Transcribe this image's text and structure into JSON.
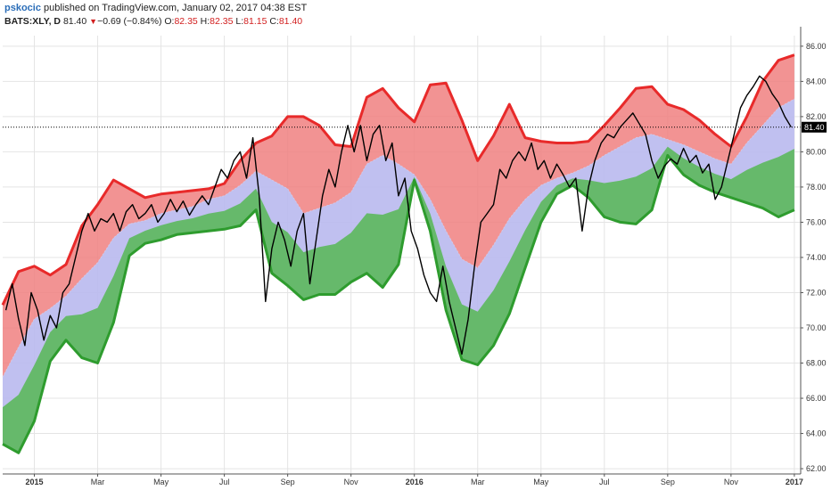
{
  "header": {
    "author": "pskocic",
    "published": "published on TradingView.com, January 02, 2017 04:38 EST",
    "symbol": "BATS:XLY, D",
    "last": "81.40",
    "change_triangle": "▼",
    "change": "−0.69 (−0.84%)",
    "open_label": "O:",
    "open": "82.35",
    "high_label": "H:",
    "high": "82.35",
    "low_label": "L:",
    "low": "81.15",
    "close_label": "C:",
    "close": "81.40"
  },
  "colors": {
    "price": "#000000",
    "upper_band": "#e82a2a",
    "upper_fill": "#f08080",
    "middle_fill": "#b9b9ee",
    "lower_band": "#2e9c2e",
    "lower_fill": "#5cb85c",
    "grid": "#e4e4e4",
    "background": "#ffffff"
  },
  "chart_data": {
    "type": "line",
    "y_axis_position": "right",
    "ylim": [
      61.7,
      86.6
    ],
    "y_ticks": [
      "62.00",
      "64.00",
      "66.00",
      "68.00",
      "70.00",
      "72.00",
      "74.00",
      "76.00",
      "78.00",
      "80.00",
      "82.00",
      "84.00",
      "86.00"
    ],
    "x_ticks": [
      {
        "t": 1.0,
        "label": "2015",
        "bold": true
      },
      {
        "t": 3.0,
        "label": "Mar",
        "bold": false
      },
      {
        "t": 5.0,
        "label": "May",
        "bold": false
      },
      {
        "t": 7.0,
        "label": "Jul",
        "bold": false
      },
      {
        "t": 9.0,
        "label": "Sep",
        "bold": false
      },
      {
        "t": 11.0,
        "label": "Nov",
        "bold": false
      },
      {
        "t": 13.0,
        "label": "2016",
        "bold": true
      },
      {
        "t": 15.0,
        "label": "Mar",
        "bold": false
      },
      {
        "t": 17.0,
        "label": "May",
        "bold": false
      },
      {
        "t": 19.0,
        "label": "Jul",
        "bold": false
      },
      {
        "t": 21.0,
        "label": "Sep",
        "bold": false
      },
      {
        "t": 23.0,
        "label": "Nov",
        "bold": false
      },
      {
        "t": 25.0,
        "label": "2017",
        "bold": true
      }
    ],
    "last_price_label": "81.40",
    "last_price": 81.4,
    "series": [
      {
        "role": "price",
        "points": [
          [
            0.1,
            71.0
          ],
          [
            0.3,
            72.5
          ],
          [
            0.5,
            70.5
          ],
          [
            0.7,
            69.0
          ],
          [
            0.9,
            72.0
          ],
          [
            1.1,
            71.0
          ],
          [
            1.3,
            69.3
          ],
          [
            1.5,
            70.7
          ],
          [
            1.7,
            70.0
          ],
          [
            1.9,
            72.0
          ],
          [
            2.1,
            72.5
          ],
          [
            2.3,
            74.0
          ],
          [
            2.5,
            75.5
          ],
          [
            2.7,
            76.5
          ],
          [
            2.9,
            75.5
          ],
          [
            3.1,
            76.2
          ],
          [
            3.3,
            76.0
          ],
          [
            3.5,
            76.5
          ],
          [
            3.7,
            75.5
          ],
          [
            3.9,
            76.6
          ],
          [
            4.1,
            77.0
          ],
          [
            4.3,
            76.2
          ],
          [
            4.5,
            76.5
          ],
          [
            4.7,
            77.0
          ],
          [
            4.9,
            76.0
          ],
          [
            5.1,
            76.5
          ],
          [
            5.3,
            77.3
          ],
          [
            5.5,
            76.6
          ],
          [
            5.7,
            77.2
          ],
          [
            5.9,
            76.4
          ],
          [
            6.1,
            77.0
          ],
          [
            6.3,
            77.5
          ],
          [
            6.5,
            77.0
          ],
          [
            6.7,
            78.0
          ],
          [
            6.9,
            79.0
          ],
          [
            7.1,
            78.5
          ],
          [
            7.3,
            79.5
          ],
          [
            7.5,
            80.0
          ],
          [
            7.7,
            78.5
          ],
          [
            7.9,
            80.8
          ],
          [
            8.1,
            77.5
          ],
          [
            8.3,
            71.5
          ],
          [
            8.5,
            74.5
          ],
          [
            8.7,
            76.0
          ],
          [
            8.9,
            75.0
          ],
          [
            9.1,
            73.5
          ],
          [
            9.3,
            75.5
          ],
          [
            9.5,
            76.5
          ],
          [
            9.7,
            72.5
          ],
          [
            9.9,
            75.0
          ],
          [
            10.1,
            77.5
          ],
          [
            10.3,
            79.0
          ],
          [
            10.5,
            78.0
          ],
          [
            10.7,
            80.0
          ],
          [
            10.9,
            81.5
          ],
          [
            11.1,
            80.0
          ],
          [
            11.3,
            81.5
          ],
          [
            11.5,
            79.5
          ],
          [
            11.7,
            81.0
          ],
          [
            11.9,
            81.5
          ],
          [
            12.1,
            79.5
          ],
          [
            12.3,
            80.5
          ],
          [
            12.5,
            77.5
          ],
          [
            12.7,
            78.5
          ],
          [
            12.9,
            75.5
          ],
          [
            13.1,
            74.5
          ],
          [
            13.3,
            73.0
          ],
          [
            13.5,
            72.0
          ],
          [
            13.7,
            71.5
          ],
          [
            13.9,
            73.5
          ],
          [
            14.1,
            71.5
          ],
          [
            14.3,
            70.0
          ],
          [
            14.5,
            68.5
          ],
          [
            14.7,
            70.5
          ],
          [
            14.9,
            73.5
          ],
          [
            15.1,
            76.0
          ],
          [
            15.3,
            76.5
          ],
          [
            15.5,
            77.0
          ],
          [
            15.7,
            79.0
          ],
          [
            15.9,
            78.5
          ],
          [
            16.1,
            79.5
          ],
          [
            16.3,
            80.0
          ],
          [
            16.5,
            79.5
          ],
          [
            16.7,
            80.5
          ],
          [
            16.9,
            79.0
          ],
          [
            17.1,
            79.5
          ],
          [
            17.3,
            78.5
          ],
          [
            17.5,
            79.3
          ],
          [
            17.7,
            78.7
          ],
          [
            17.9,
            78.0
          ],
          [
            18.1,
            78.5
          ],
          [
            18.3,
            75.5
          ],
          [
            18.5,
            78.0
          ],
          [
            18.7,
            79.5
          ],
          [
            18.9,
            80.5
          ],
          [
            19.1,
            81.0
          ],
          [
            19.3,
            80.8
          ],
          [
            19.5,
            81.4
          ],
          [
            19.7,
            81.8
          ],
          [
            19.9,
            82.2
          ],
          [
            20.1,
            81.6
          ],
          [
            20.3,
            81.0
          ],
          [
            20.5,
            79.5
          ],
          [
            20.7,
            78.5
          ],
          [
            20.9,
            79.2
          ],
          [
            21.1,
            79.6
          ],
          [
            21.3,
            79.3
          ],
          [
            21.5,
            80.2
          ],
          [
            21.7,
            79.4
          ],
          [
            21.9,
            79.8
          ],
          [
            22.1,
            78.8
          ],
          [
            22.3,
            79.3
          ],
          [
            22.5,
            77.3
          ],
          [
            22.7,
            78.0
          ],
          [
            22.9,
            79.5
          ],
          [
            23.1,
            81.0
          ],
          [
            23.3,
            82.5
          ],
          [
            23.5,
            83.2
          ],
          [
            23.7,
            83.7
          ],
          [
            23.9,
            84.3
          ],
          [
            24.1,
            84.0
          ],
          [
            24.3,
            83.3
          ],
          [
            24.5,
            82.8
          ],
          [
            24.7,
            82.0
          ],
          [
            24.9,
            81.4
          ]
        ]
      },
      {
        "role": "upper_band",
        "points": [
          [
            0.0,
            71.3
          ],
          [
            0.5,
            73.2
          ],
          [
            1.0,
            73.5
          ],
          [
            1.5,
            73.0
          ],
          [
            2.0,
            73.6
          ],
          [
            2.5,
            75.8
          ],
          [
            3.0,
            77.0
          ],
          [
            3.5,
            78.4
          ],
          [
            4.0,
            77.9
          ],
          [
            4.5,
            77.4
          ],
          [
            5.0,
            77.6
          ],
          [
            5.5,
            77.7
          ],
          [
            6.0,
            77.8
          ],
          [
            6.5,
            77.9
          ],
          [
            7.0,
            78.2
          ],
          [
            7.5,
            79.5
          ],
          [
            8.0,
            80.5
          ],
          [
            8.5,
            80.9
          ],
          [
            9.0,
            82.0
          ],
          [
            9.5,
            82.0
          ],
          [
            10.0,
            81.5
          ],
          [
            10.5,
            80.4
          ],
          [
            11.0,
            80.3
          ],
          [
            11.5,
            83.1
          ],
          [
            12.0,
            83.6
          ],
          [
            12.5,
            82.5
          ],
          [
            13.0,
            81.7
          ],
          [
            13.5,
            83.8
          ],
          [
            14.0,
            83.9
          ],
          [
            14.5,
            81.8
          ],
          [
            15.0,
            79.5
          ],
          [
            15.5,
            80.9
          ],
          [
            16.0,
            82.7
          ],
          [
            16.5,
            80.8
          ],
          [
            17.0,
            80.6
          ],
          [
            17.5,
            80.5
          ],
          [
            18.0,
            80.5
          ],
          [
            18.5,
            80.6
          ],
          [
            19.0,
            81.5
          ],
          [
            19.5,
            82.5
          ],
          [
            20.0,
            83.6
          ],
          [
            20.5,
            83.7
          ],
          [
            21.0,
            82.7
          ],
          [
            21.5,
            82.4
          ],
          [
            22.0,
            81.8
          ],
          [
            22.5,
            81.0
          ],
          [
            23.0,
            80.3
          ],
          [
            23.5,
            82.0
          ],
          [
            24.0,
            84.0
          ],
          [
            24.5,
            85.2
          ],
          [
            25.0,
            85.5
          ]
        ]
      },
      {
        "role": "middle_band",
        "points": [
          [
            0.0,
            67.2
          ],
          [
            0.5,
            68.9
          ],
          [
            1.0,
            70.5
          ],
          [
            1.5,
            71.1
          ],
          [
            2.0,
            71.8
          ],
          [
            2.5,
            72.8
          ],
          [
            3.0,
            73.7
          ],
          [
            3.5,
            75.1
          ],
          [
            4.0,
            75.9
          ],
          [
            4.5,
            76.1
          ],
          [
            5.0,
            76.5
          ],
          [
            5.5,
            76.7
          ],
          [
            6.0,
            76.9
          ],
          [
            6.5,
            77.3
          ],
          [
            7.0,
            77.5
          ],
          [
            7.5,
            78.1
          ],
          [
            8.0,
            78.9
          ],
          [
            8.5,
            78.4
          ],
          [
            9.0,
            77.9
          ],
          [
            9.5,
            76.5
          ],
          [
            10.0,
            76.8
          ],
          [
            10.5,
            77.1
          ],
          [
            11.0,
            77.7
          ],
          [
            11.5,
            79.3
          ],
          [
            12.0,
            79.8
          ],
          [
            12.5,
            79.3
          ],
          [
            13.0,
            78.7
          ],
          [
            13.5,
            77.3
          ],
          [
            14.0,
            75.5
          ],
          [
            14.5,
            73.9
          ],
          [
            15.0,
            73.4
          ],
          [
            15.5,
            74.7
          ],
          [
            16.0,
            76.2
          ],
          [
            16.5,
            77.3
          ],
          [
            17.0,
            78.1
          ],
          [
            17.5,
            78.5
          ],
          [
            18.0,
            78.8
          ],
          [
            18.5,
            79.2
          ],
          [
            19.0,
            79.8
          ],
          [
            19.5,
            80.3
          ],
          [
            20.0,
            80.8
          ],
          [
            20.5,
            81.0
          ],
          [
            21.0,
            80.7
          ],
          [
            21.5,
            80.4
          ],
          [
            22.0,
            80.0
          ],
          [
            22.5,
            79.6
          ],
          [
            23.0,
            79.3
          ],
          [
            23.5,
            80.5
          ],
          [
            24.0,
            81.5
          ],
          [
            24.5,
            82.5
          ],
          [
            25.0,
            83.0
          ]
        ]
      },
      {
        "role": "lower_band",
        "points": [
          [
            0.0,
            63.4
          ],
          [
            0.5,
            62.9
          ],
          [
            1.0,
            64.7
          ],
          [
            1.5,
            68.1
          ],
          [
            2.0,
            69.3
          ],
          [
            2.5,
            68.3
          ],
          [
            3.0,
            68.0
          ],
          [
            3.5,
            70.3
          ],
          [
            4.0,
            74.1
          ],
          [
            4.5,
            74.8
          ],
          [
            5.0,
            75.0
          ],
          [
            5.5,
            75.3
          ],
          [
            6.0,
            75.4
          ],
          [
            6.5,
            75.5
          ],
          [
            7.0,
            75.6
          ],
          [
            7.5,
            75.8
          ],
          [
            8.0,
            76.7
          ],
          [
            8.5,
            73.1
          ],
          [
            9.0,
            72.4
          ],
          [
            9.5,
            71.6
          ],
          [
            10.0,
            71.9
          ],
          [
            10.5,
            71.9
          ],
          [
            11.0,
            72.6
          ],
          [
            11.5,
            73.1
          ],
          [
            12.0,
            72.3
          ],
          [
            12.5,
            73.6
          ],
          [
            13.0,
            78.4
          ],
          [
            13.5,
            75.5
          ],
          [
            14.0,
            71.0
          ],
          [
            14.5,
            68.2
          ],
          [
            15.0,
            67.9
          ],
          [
            15.5,
            69.0
          ],
          [
            16.0,
            70.8
          ],
          [
            16.5,
            73.4
          ],
          [
            17.0,
            76.0
          ],
          [
            17.5,
            77.6
          ],
          [
            18.0,
            78.1
          ],
          [
            18.5,
            77.4
          ],
          [
            19.0,
            76.3
          ],
          [
            19.5,
            76.0
          ],
          [
            20.0,
            75.9
          ],
          [
            20.5,
            76.7
          ],
          [
            21.0,
            79.8
          ],
          [
            21.5,
            78.7
          ],
          [
            22.0,
            78.1
          ],
          [
            22.5,
            77.7
          ],
          [
            23.0,
            77.4
          ],
          [
            23.5,
            77.1
          ],
          [
            24.0,
            76.8
          ],
          [
            24.5,
            76.3
          ],
          [
            25.0,
            76.7
          ]
        ]
      }
    ]
  }
}
